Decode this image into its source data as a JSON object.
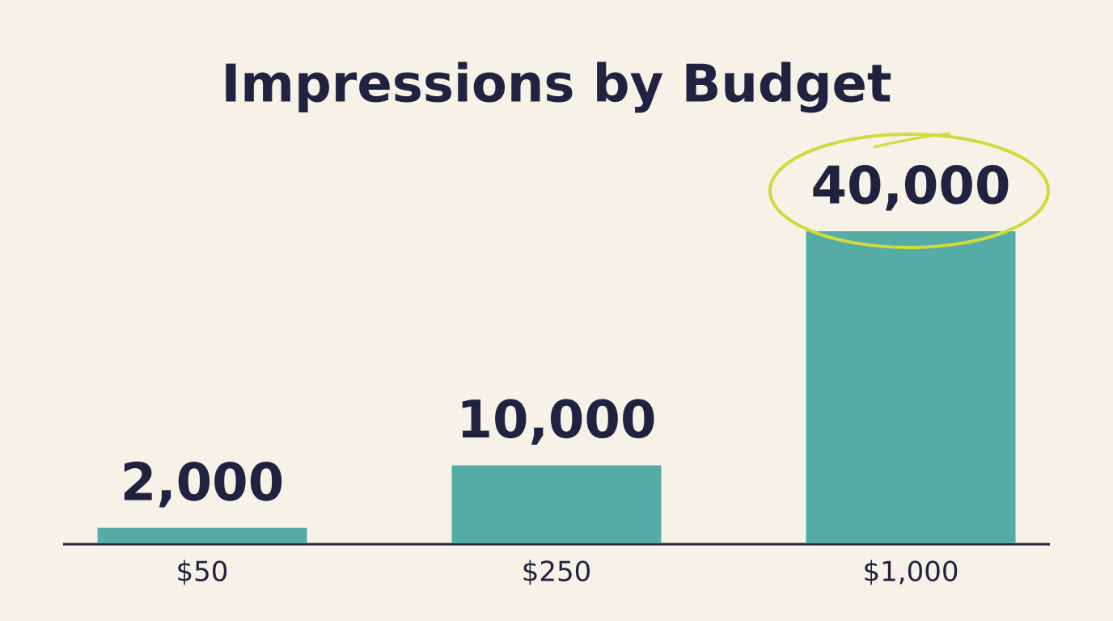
{
  "chart_data": {
    "type": "bar",
    "title": "Impressions by Budget",
    "categories": [
      "$50",
      "$250",
      "$1,000"
    ],
    "values": [
      2000,
      10000,
      40000
    ],
    "value_labels": [
      "2,000",
      "10,000",
      "40,000"
    ],
    "color": "#55aca6"
  }
}
